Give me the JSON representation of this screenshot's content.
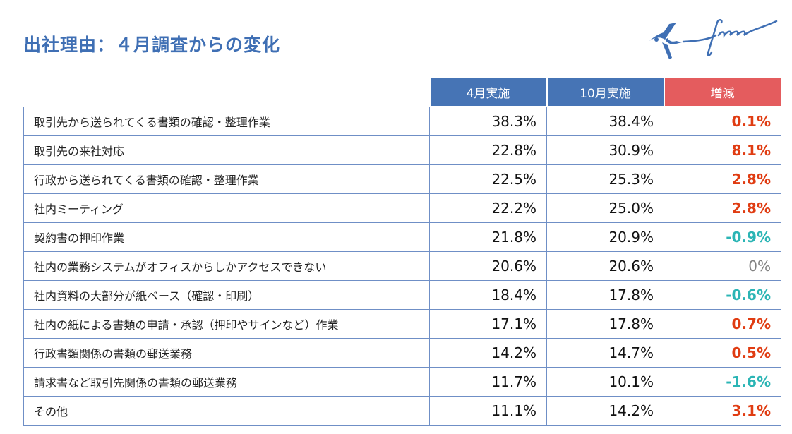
{
  "title": "出社理由：４月調査からの変化",
  "logo": {
    "text": "freee",
    "color": "#3f6fb4"
  },
  "colors": {
    "header_blue": "#4674b5",
    "header_red": "#e45c5e",
    "positive": "#e03c12",
    "negative": "#2bb5b5",
    "zero": "#808080"
  },
  "table": {
    "headers": [
      "4月実施",
      "10月実施",
      "増減"
    ],
    "rows": [
      {
        "label": "取引先から送られてくる書類の確認・整理作業",
        "apr": "38.3%",
        "oct": "38.4%",
        "diff": "0.1%",
        "sign": "pos"
      },
      {
        "label": "取引先の来社対応",
        "apr": "22.8%",
        "oct": "30.9%",
        "diff": "8.1%",
        "sign": "pos"
      },
      {
        "label": "行政から送られてくる書類の確認・整理作業",
        "apr": "22.5%",
        "oct": "25.3%",
        "diff": "2.8%",
        "sign": "pos"
      },
      {
        "label": "社内ミーティング",
        "apr": "22.2%",
        "oct": "25.0%",
        "diff": "2.8%",
        "sign": "pos"
      },
      {
        "label": "契約書の押印作業",
        "apr": "21.8%",
        "oct": "20.9%",
        "diff": "-0.9%",
        "sign": "neg"
      },
      {
        "label": "社内の業務システムがオフィスからしかアクセスできない",
        "apr": "20.6%",
        "oct": "20.6%",
        "diff": "0%",
        "sign": "zero"
      },
      {
        "label": "社内資料の大部分が紙ベース（確認・印刷）",
        "apr": "18.4%",
        "oct": "17.8%",
        "diff": "-0.6%",
        "sign": "neg"
      },
      {
        "label": "社内の紙による書類の申請・承認（押印やサインなど）作業",
        "apr": "17.1%",
        "oct": "17.8%",
        "diff": "0.7%",
        "sign": "pos"
      },
      {
        "label": "行政書類関係の書類の郵送業務",
        "apr": "14.2%",
        "oct": "14.7%",
        "diff": "0.5%",
        "sign": "pos"
      },
      {
        "label": "請求書など取引先関係の書類の郵送業務",
        "apr": "11.7%",
        "oct": "10.1%",
        "diff": "-1.6%",
        "sign": "neg"
      },
      {
        "label": "その他",
        "apr": "11.1%",
        "oct": "14.2%",
        "diff": "3.1%",
        "sign": "pos"
      }
    ]
  }
}
